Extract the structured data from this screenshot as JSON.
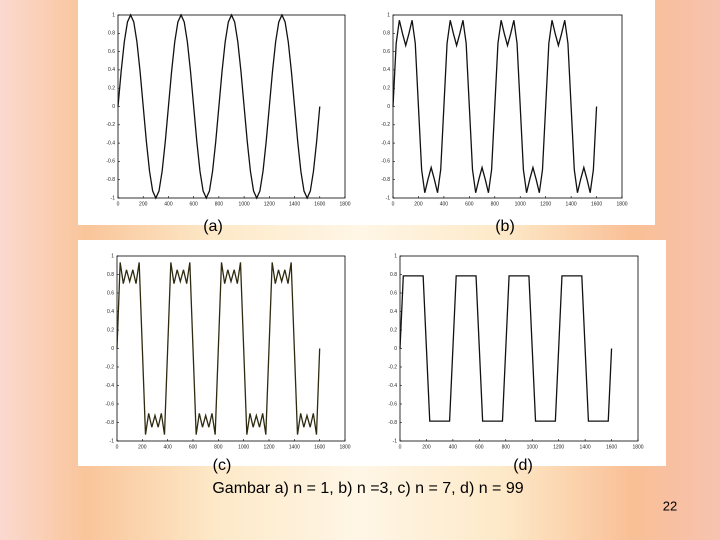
{
  "chart_data": [
    {
      "type": "line",
      "title": "(a)",
      "xlim": [
        0,
        1800
      ],
      "ylim": [
        -1,
        1
      ],
      "xticks": [
        0,
        200,
        400,
        600,
        800,
        1000,
        1200,
        1400,
        1600,
        1800
      ],
      "yticks": [
        -1,
        -0.8,
        -0.6,
        -0.4,
        -0.2,
        0,
        0.2,
        0.4,
        0.6,
        0.8,
        1
      ],
      "x": [
        0,
        25,
        50,
        75,
        100,
        125,
        150,
        175,
        200,
        225,
        250,
        275,
        300,
        325,
        350,
        375,
        400,
        425,
        450,
        475,
        500,
        525,
        550,
        575,
        600,
        625,
        650,
        675,
        700,
        725,
        750,
        775,
        800,
        825,
        850,
        875,
        900,
        925,
        950,
        975,
        1000,
        1025,
        1050,
        1075,
        1100,
        1125,
        1150,
        1175,
        1200,
        1225,
        1250,
        1275,
        1300,
        1325,
        1350,
        1375,
        1400,
        1425,
        1450,
        1475,
        1500,
        1525,
        1550,
        1575,
        1600
      ],
      "series": [
        {
          "color": "#111111",
          "values": [
            0,
            0.383,
            0.707,
            0.924,
            1,
            0.924,
            0.707,
            0.383,
            0,
            -0.383,
            -0.707,
            -0.924,
            -1,
            -0.924,
            -0.707,
            -0.383,
            0,
            0.383,
            0.707,
            0.924,
            1,
            0.924,
            0.707,
            0.383,
            0,
            -0.383,
            -0.707,
            -0.924,
            -1,
            -0.924,
            -0.707,
            -0.383,
            0,
            0.383,
            0.707,
            0.924,
            1,
            0.924,
            0.707,
            0.383,
            0,
            -0.383,
            -0.707,
            -0.924,
            -1,
            -0.924,
            -0.707,
            -0.383,
            0,
            0.383,
            0.707,
            0.924,
            1,
            0.924,
            0.707,
            0.383,
            0,
            -0.383,
            -0.707,
            -0.924,
            -1,
            -0.924,
            -0.707,
            -0.383,
            0
          ]
        }
      ]
    },
    {
      "type": "line",
      "title": "(b)",
      "xlim": [
        0,
        1800
      ],
      "ylim": [
        -1,
        1
      ],
      "xticks": [
        0,
        200,
        400,
        600,
        800,
        1000,
        1200,
        1400,
        1600,
        1800
      ],
      "yticks": [
        -1,
        -0.8,
        -0.6,
        -0.4,
        -0.2,
        0,
        0.2,
        0.4,
        0.6,
        0.8,
        1
      ],
      "x": [
        0,
        25,
        50,
        75,
        100,
        125,
        150,
        175,
        200,
        225,
        250,
        275,
        300,
        325,
        350,
        375,
        400,
        425,
        450,
        475,
        500,
        525,
        550,
        575,
        600,
        625,
        650,
        675,
        700,
        725,
        750,
        775,
        800,
        825,
        850,
        875,
        900,
        925,
        950,
        975,
        1000,
        1025,
        1050,
        1075,
        1100,
        1125,
        1150,
        1175,
        1200,
        1225,
        1250,
        1275,
        1300,
        1325,
        1350,
        1375,
        1400,
        1425,
        1450,
        1475,
        1500,
        1525,
        1550,
        1575,
        1600
      ],
      "series": [
        {
          "color": "#111111",
          "values": [
            0,
            0.691,
            0.943,
            0.796,
            0.667,
            0.796,
            0.943,
            0.691,
            0,
            -0.691,
            -0.943,
            -0.796,
            -0.667,
            -0.796,
            -0.943,
            -0.691,
            0,
            0.691,
            0.943,
            0.796,
            0.667,
            0.796,
            0.943,
            0.691,
            0,
            -0.691,
            -0.943,
            -0.796,
            -0.667,
            -0.796,
            -0.943,
            -0.691,
            0,
            0.691,
            0.943,
            0.796,
            0.667,
            0.796,
            0.943,
            0.691,
            0,
            -0.691,
            -0.943,
            -0.796,
            -0.667,
            -0.796,
            -0.943,
            -0.691,
            0,
            0.691,
            0.943,
            0.796,
            0.667,
            0.796,
            0.943,
            0.691,
            0,
            -0.691,
            -0.943,
            -0.796,
            -0.667,
            -0.796,
            -0.943,
            -0.691,
            0
          ]
        }
      ]
    },
    {
      "type": "line",
      "title": "(c)",
      "xlim": [
        0,
        1800
      ],
      "ylim": [
        -1,
        1
      ],
      "xticks": [
        0,
        200,
        400,
        600,
        800,
        1000,
        1200,
        1400,
        1600,
        1800
      ],
      "yticks": [
        -1,
        -0.8,
        -0.6,
        -0.4,
        -0.2,
        0,
        0.2,
        0.4,
        0.6,
        0.8,
        1
      ],
      "x": [
        0,
        25,
        50,
        75,
        100,
        125,
        150,
        175,
        200,
        225,
        250,
        275,
        300,
        325,
        350,
        375,
        400,
        425,
        450,
        475,
        500,
        525,
        550,
        575,
        600,
        625,
        650,
        675,
        700,
        725,
        750,
        775,
        800,
        825,
        850,
        875,
        900,
        925,
        950,
        975,
        1000,
        1025,
        1050,
        1075,
        1100,
        1125,
        1150,
        1175,
        1200,
        1225,
        1250,
        1275,
        1300,
        1325,
        1350,
        1375,
        1400,
        1425,
        1450,
        1475,
        1500,
        1525,
        1550,
        1575,
        1600
      ],
      "series": [
        {
          "color": "#2e2a10",
          "values": [
            0,
            0.931,
            0.701,
            0.851,
            0.724,
            0.851,
            0.701,
            0.931,
            0,
            -0.931,
            -0.701,
            -0.851,
            -0.724,
            -0.851,
            -0.701,
            -0.931,
            0,
            0.931,
            0.701,
            0.851,
            0.724,
            0.851,
            0.701,
            0.931,
            0,
            -0.931,
            -0.701,
            -0.851,
            -0.724,
            -0.851,
            -0.701,
            -0.931,
            0,
            0.931,
            0.701,
            0.851,
            0.724,
            0.851,
            0.701,
            0.931,
            0,
            -0.931,
            -0.701,
            -0.851,
            -0.724,
            -0.851,
            -0.701,
            -0.931,
            0,
            0.931,
            0.701,
            0.851,
            0.724,
            0.851,
            0.701,
            0.931,
            0,
            -0.931,
            -0.701,
            -0.851,
            -0.724,
            -0.851,
            -0.701,
            -0.931,
            0
          ]
        }
      ]
    },
    {
      "type": "line",
      "title": "(d)",
      "xlim": [
        0,
        1800
      ],
      "ylim": [
        -1,
        1
      ],
      "xticks": [
        0,
        200,
        400,
        600,
        800,
        1000,
        1200,
        1400,
        1600,
        1800
      ],
      "yticks": [
        -1,
        -0.8,
        -0.6,
        -0.4,
        -0.2,
        0,
        0.2,
        0.4,
        0.6,
        0.8,
        1
      ],
      "x": [
        0,
        25,
        50,
        75,
        100,
        125,
        150,
        175,
        200,
        225,
        250,
        275,
        300,
        325,
        350,
        375,
        400,
        425,
        450,
        475,
        500,
        525,
        550,
        575,
        600,
        625,
        650,
        675,
        700,
        725,
        750,
        775,
        800,
        825,
        850,
        875,
        900,
        925,
        950,
        975,
        1000,
        1025,
        1050,
        1075,
        1100,
        1125,
        1150,
        1175,
        1200,
        1225,
        1250,
        1275,
        1300,
        1325,
        1350,
        1375,
        1400,
        1425,
        1450,
        1475,
        1500,
        1525,
        1550,
        1575,
        1600
      ],
      "series": [
        {
          "color": "#111111",
          "values": [
            0,
            0.785,
            0.785,
            0.785,
            0.785,
            0.785,
            0.785,
            0.785,
            0,
            -0.785,
            -0.785,
            -0.785,
            -0.785,
            -0.785,
            -0.785,
            -0.785,
            0,
            0.785,
            0.785,
            0.785,
            0.785,
            0.785,
            0.785,
            0.785,
            0,
            -0.785,
            -0.785,
            -0.785,
            -0.785,
            -0.785,
            -0.785,
            -0.785,
            0,
            0.785,
            0.785,
            0.785,
            0.785,
            0.785,
            0.785,
            0.785,
            0,
            -0.785,
            -0.785,
            -0.785,
            -0.785,
            -0.785,
            -0.785,
            -0.785,
            0,
            0.785,
            0.785,
            0.785,
            0.785,
            0.785,
            0.785,
            0.785,
            0,
            -0.785,
            -0.785,
            -0.785,
            -0.785,
            -0.785,
            -0.785,
            -0.785,
            0
          ]
        }
      ]
    }
  ],
  "caption": "Gambar  a) n = 1, b) n =3, c) n = 7, d) n = 99",
  "page_number": "22"
}
